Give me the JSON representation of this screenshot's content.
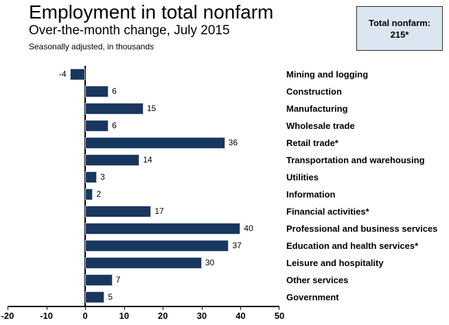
{
  "header": {
    "title": "Employment in total nonfarm",
    "subtitle": "Over-the-month change, July 2015",
    "note": "Seasonally adjusted, in thousands",
    "callout": {
      "line1": "Total nonfarm:",
      "line2": "215*"
    }
  },
  "colors": {
    "bar_fill": "#17375E",
    "bar_border": "#c3cbd9",
    "callout_bg": "#DCE6F2",
    "axis": "#000000",
    "text": "#000000"
  },
  "chart_data": {
    "type": "bar",
    "orientation": "horizontal",
    "title": "Employment in total nonfarm",
    "subtitle": "Over-the-month change, July 2015",
    "note": "Seasonally adjusted, in thousands",
    "annotation": "Total nonfarm: 215*",
    "categories": [
      "Mining and logging",
      "Construction",
      "Manufacturing",
      "Wholesale trade",
      "Retail trade*",
      "Transportation and warehousing",
      "Utilities",
      "Information",
      "Financial activities*",
      "Professional and business services",
      "Education and health services*",
      "Leisure and hospitality",
      "Other services",
      "Government"
    ],
    "values": [
      -4,
      6,
      15,
      6,
      36,
      14,
      3,
      2,
      17,
      40,
      37,
      30,
      7,
      5
    ],
    "value_labels_shown": true,
    "xlim": [
      -20,
      50
    ],
    "xticks": [
      -20,
      -10,
      0,
      10,
      20,
      30,
      40,
      50
    ],
    "grid": false,
    "legend_position": "none"
  }
}
